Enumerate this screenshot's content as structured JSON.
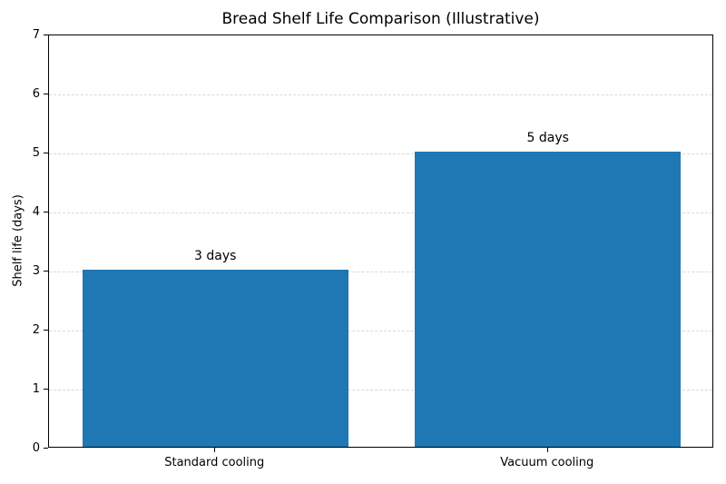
{
  "chart_data": {
    "type": "bar",
    "title": "Bread Shelf Life Comparison (Illustrative)",
    "categories": [
      "Standard cooling",
      "Vacuum cooling"
    ],
    "values": [
      3,
      5
    ],
    "bar_labels": [
      "3 days",
      "5 days"
    ],
    "xlabel": "",
    "ylabel": "Shelf life (days)",
    "ylim": [
      0,
      7
    ],
    "yticks": [
      0,
      1,
      2,
      3,
      4,
      5,
      6,
      7
    ],
    "bar_color": "#1f77b4",
    "grid": "horizontal-dashed",
    "grid_color": "#d9d9d9",
    "bar_width_fraction": 0.8,
    "legend": "none"
  }
}
